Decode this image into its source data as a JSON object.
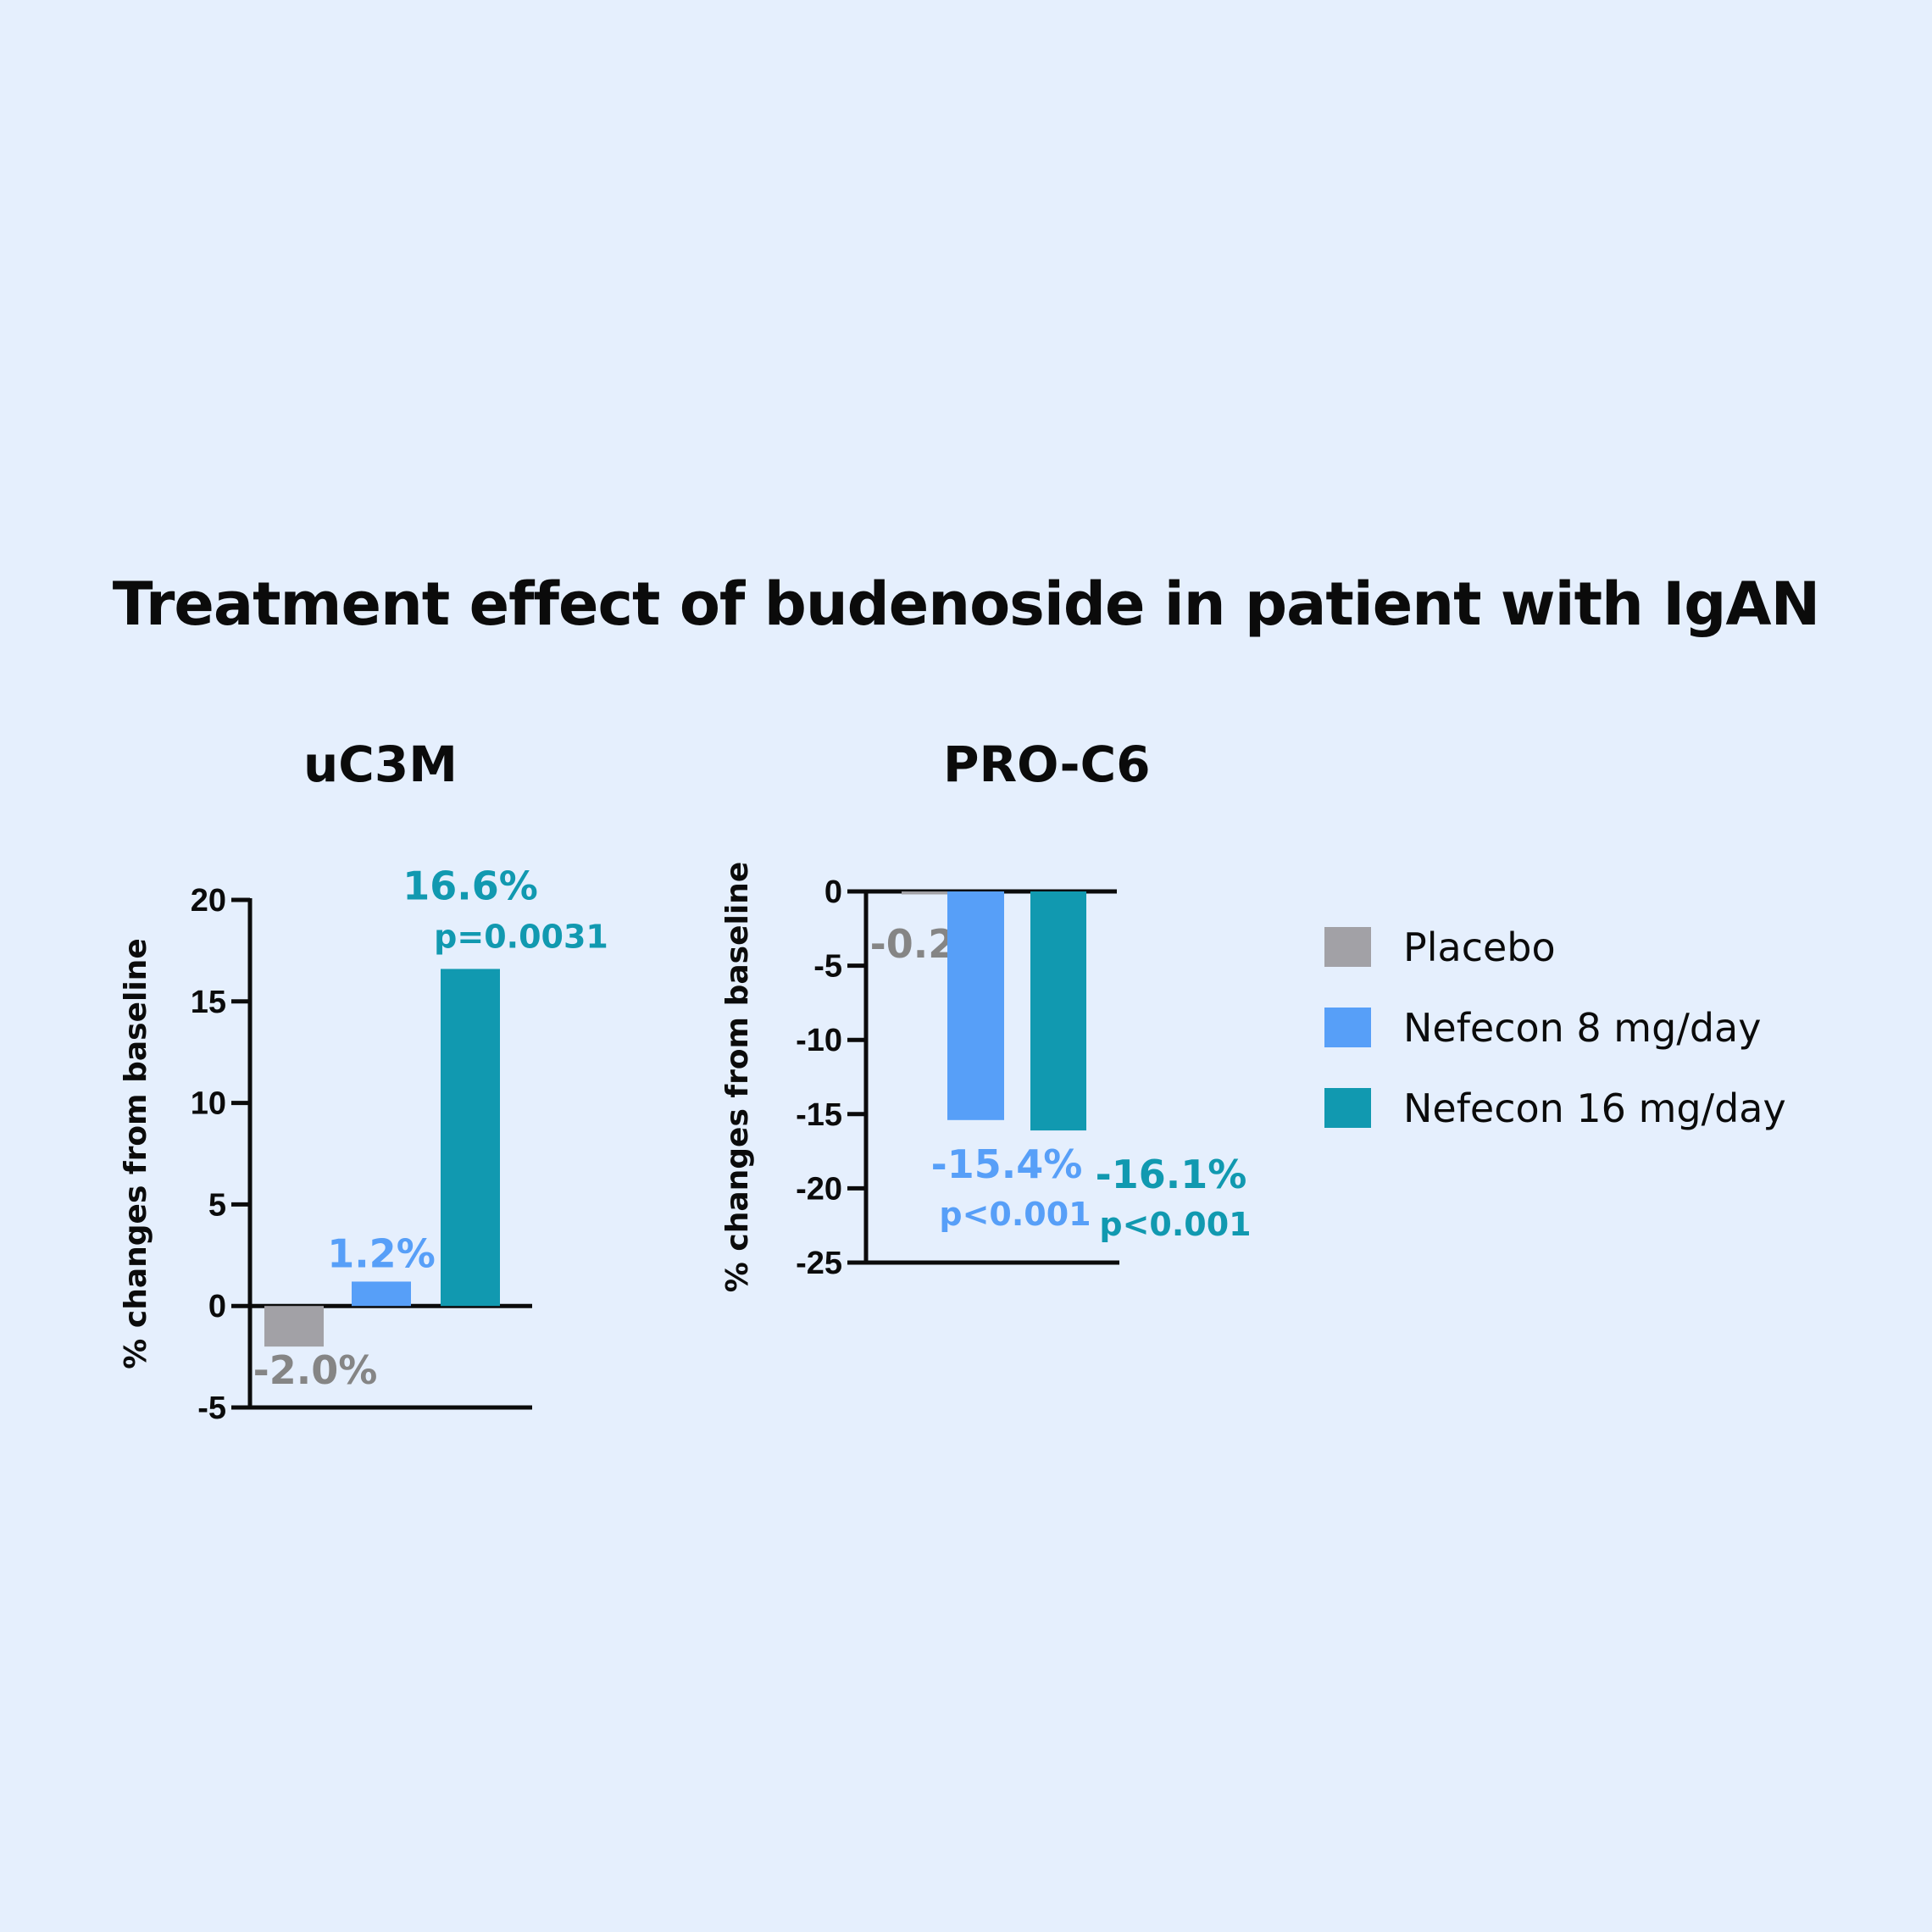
{
  "title": "Treatment effect of budenoside in patient with IgAN",
  "colors": {
    "Placebo": "#a2a1a6",
    "Nefecon 8 mg/day": "#579ff8",
    "Nefecon 16 mg/day": "#1199b0",
    "placebo_text": "#858585",
    "axis": "#0b0b0b"
  },
  "legend": {
    "placement": "right",
    "items": [
      {
        "label": "Placebo"
      },
      {
        "label": "Nefecon 8 mg/day"
      },
      {
        "label": "Nefecon 16 mg/day"
      }
    ]
  },
  "chart_data": [
    {
      "type": "bar",
      "title": "uC3M",
      "ylabel": "% changes from baseline",
      "xlabel": "",
      "ylim": [
        -5,
        20
      ],
      "yticks": [
        20,
        15,
        10,
        5,
        0,
        -5
      ],
      "categories": [
        "Placebo",
        "Nefecon 8 mg/day",
        "Nefecon 16 mg/day"
      ],
      "values": [
        -2.0,
        1.2,
        16.6
      ],
      "value_labels": [
        "-2.0%",
        "1.2%",
        "16.6%"
      ],
      "p_values": [
        "",
        "",
        "p=0.0031"
      ]
    },
    {
      "type": "bar",
      "title": "PRO-C6",
      "ylabel": "% changes from baseline",
      "xlabel": "",
      "ylim": [
        -25,
        0
      ],
      "yticks": [
        0,
        -5,
        -10,
        -15,
        -20,
        -25
      ],
      "categories": [
        "Placebo",
        "Nefecon 8 mg/day",
        "Nefecon 16 mg/day"
      ],
      "values": [
        -0.2,
        -15.4,
        -16.1
      ],
      "value_labels": [
        "-0.2%",
        "-15.4%",
        "-16.1%"
      ],
      "p_values": [
        "",
        "p<0.001",
        "p<0.001"
      ]
    }
  ]
}
